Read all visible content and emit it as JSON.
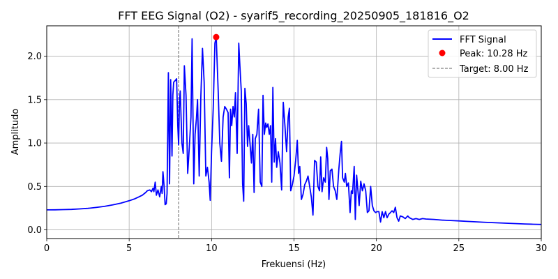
{
  "chart_data": {
    "type": "line",
    "title": "FFT EEG Signal (O2) - syarif5_recording_20250905_181816_O2",
    "xlabel": "Frekuensi (Hz)",
    "ylabel": "Amplitudo",
    "xlim": [
      0,
      30
    ],
    "ylim": [
      -0.1,
      2.35
    ],
    "xticks": [
      0,
      5,
      10,
      15,
      20,
      25,
      30
    ],
    "yticks": [
      0.0,
      0.5,
      1.0,
      1.5,
      2.0
    ],
    "xtick_labels": [
      "0",
      "5",
      "10",
      "15",
      "20",
      "25",
      "30"
    ],
    "ytick_labels": [
      "0.0",
      "0.5",
      "1.0",
      "1.5",
      "2.0"
    ],
    "grid": true,
    "legend_position": "top-right",
    "series": [
      {
        "name": "FFT Signal",
        "color": "#0000ff",
        "points": [
          [
            0,
            0.23
          ],
          [
            0.5,
            0.231
          ],
          [
            1,
            0.233
          ],
          [
            1.5,
            0.236
          ],
          [
            2,
            0.241
          ],
          [
            2.5,
            0.248
          ],
          [
            3,
            0.258
          ],
          [
            3.5,
            0.27
          ],
          [
            4,
            0.287
          ],
          [
            4.5,
            0.308
          ],
          [
            5,
            0.335
          ],
          [
            5.3,
            0.355
          ],
          [
            5.6,
            0.38
          ],
          [
            5.8,
            0.4
          ],
          [
            6.0,
            0.43
          ],
          [
            6.1,
            0.45
          ],
          [
            6.25,
            0.46
          ],
          [
            6.35,
            0.44
          ],
          [
            6.45,
            0.48
          ],
          [
            6.5,
            0.44
          ],
          [
            6.58,
            0.55
          ],
          [
            6.65,
            0.4
          ],
          [
            6.75,
            0.46
          ],
          [
            6.85,
            0.38
          ],
          [
            6.95,
            0.5
          ],
          [
            7.0,
            0.42
          ],
          [
            7.05,
            0.67
          ],
          [
            7.12,
            0.5
          ],
          [
            7.18,
            0.29
          ],
          [
            7.25,
            0.3
          ],
          [
            7.3,
            0.42
          ],
          [
            7.38,
            1.81
          ],
          [
            7.45,
            0.53
          ],
          [
            7.52,
            1.73
          ],
          [
            7.6,
            0.85
          ],
          [
            7.65,
            1.55
          ],
          [
            7.7,
            1.7
          ],
          [
            7.8,
            1.72
          ],
          [
            7.88,
            1.74
          ],
          [
            7.95,
            1.2
          ],
          [
            8.0,
            0.98
          ],
          [
            8.05,
            1.45
          ],
          [
            8.1,
            1.6
          ],
          [
            8.15,
            1.3
          ],
          [
            8.2,
            1.0
          ],
          [
            8.28,
            0.88
          ],
          [
            8.35,
            1.89
          ],
          [
            8.45,
            1.55
          ],
          [
            8.55,
            0.65
          ],
          [
            8.65,
            0.95
          ],
          [
            8.75,
            1.3
          ],
          [
            8.82,
            2.2
          ],
          [
            8.92,
            0.53
          ],
          [
            9.0,
            1.1
          ],
          [
            9.08,
            1.28
          ],
          [
            9.15,
            1.5
          ],
          [
            9.25,
            0.62
          ],
          [
            9.35,
            1.55
          ],
          [
            9.45,
            2.09
          ],
          [
            9.55,
            1.7
          ],
          [
            9.65,
            0.62
          ],
          [
            9.75,
            0.72
          ],
          [
            9.85,
            0.55
          ],
          [
            9.92,
            0.34
          ],
          [
            10.0,
            0.9
          ],
          [
            10.1,
            1.4
          ],
          [
            10.2,
            2.15
          ],
          [
            10.28,
            2.22
          ],
          [
            10.4,
            1.6
          ],
          [
            10.5,
            1.0
          ],
          [
            10.6,
            0.79
          ],
          [
            10.7,
            1.3
          ],
          [
            10.8,
            1.42
          ],
          [
            10.9,
            1.39
          ],
          [
            11.0,
            1.35
          ],
          [
            11.08,
            0.6
          ],
          [
            11.15,
            1.39
          ],
          [
            11.22,
            1.2
          ],
          [
            11.3,
            1.42
          ],
          [
            11.38,
            1.3
          ],
          [
            11.45,
            1.58
          ],
          [
            11.55,
            0.88
          ],
          [
            11.65,
            2.15
          ],
          [
            11.72,
            1.88
          ],
          [
            11.8,
            1.6
          ],
          [
            11.88,
            0.53
          ],
          [
            11.95,
            0.33
          ],
          [
            12.02,
            1.63
          ],
          [
            12.1,
            1.45
          ],
          [
            12.18,
            0.96
          ],
          [
            12.25,
            1.2
          ],
          [
            12.32,
            1.02
          ],
          [
            12.42,
            0.77
          ],
          [
            12.5,
            1.1
          ],
          [
            12.58,
            0.43
          ],
          [
            12.65,
            1.05
          ],
          [
            12.75,
            1.1
          ],
          [
            12.85,
            1.39
          ],
          [
            12.95,
            0.55
          ],
          [
            13.05,
            0.5
          ],
          [
            13.12,
            1.55
          ],
          [
            13.2,
            1.1
          ],
          [
            13.28,
            1.23
          ],
          [
            13.35,
            1.18
          ],
          [
            13.42,
            1.22
          ],
          [
            13.5,
            1.1
          ],
          [
            13.58,
            1.2
          ],
          [
            13.65,
            0.55
          ],
          [
            13.72,
            1.64
          ],
          [
            13.8,
            0.78
          ],
          [
            13.88,
            1.05
          ],
          [
            13.95,
            0.72
          ],
          [
            14.05,
            0.9
          ],
          [
            14.15,
            0.77
          ],
          [
            14.25,
            0.46
          ],
          [
            14.35,
            1.47
          ],
          [
            14.45,
            1.2
          ],
          [
            14.55,
            0.9
          ],
          [
            14.65,
            1.3
          ],
          [
            14.72,
            1.4
          ],
          [
            14.8,
            0.45
          ],
          [
            14.9,
            0.52
          ],
          [
            15.0,
            0.62
          ],
          [
            15.1,
            0.8
          ],
          [
            15.2,
            1.03
          ],
          [
            15.28,
            0.65
          ],
          [
            15.35,
            0.73
          ],
          [
            15.45,
            0.35
          ],
          [
            15.55,
            0.41
          ],
          [
            15.65,
            0.52
          ],
          [
            15.75,
            0.56
          ],
          [
            15.85,
            0.62
          ],
          [
            15.95,
            0.5
          ],
          [
            16.05,
            0.38
          ],
          [
            16.15,
            0.17
          ],
          [
            16.25,
            0.8
          ],
          [
            16.35,
            0.78
          ],
          [
            16.45,
            0.5
          ],
          [
            16.55,
            0.45
          ],
          [
            16.62,
            0.84
          ],
          [
            16.7,
            0.44
          ],
          [
            16.8,
            0.6
          ],
          [
            16.9,
            0.55
          ],
          [
            16.98,
            0.95
          ],
          [
            17.05,
            0.82
          ],
          [
            17.12,
            0.35
          ],
          [
            17.2,
            0.68
          ],
          [
            17.3,
            0.7
          ],
          [
            17.4,
            0.5
          ],
          [
            17.5,
            0.45
          ],
          [
            17.6,
            0.35
          ],
          [
            17.72,
            0.7
          ],
          [
            17.8,
            0.88
          ],
          [
            17.88,
            1.02
          ],
          [
            17.95,
            0.6
          ],
          [
            18.05,
            0.55
          ],
          [
            18.12,
            0.65
          ],
          [
            18.2,
            0.5
          ],
          [
            18.3,
            0.54
          ],
          [
            18.4,
            0.2
          ],
          [
            18.48,
            0.45
          ],
          [
            18.55,
            0.42
          ],
          [
            18.65,
            0.73
          ],
          [
            18.72,
            0.12
          ],
          [
            18.8,
            0.63
          ],
          [
            18.88,
            0.45
          ],
          [
            18.95,
            0.28
          ],
          [
            19.05,
            0.56
          ],
          [
            19.15,
            0.45
          ],
          [
            19.25,
            0.53
          ],
          [
            19.35,
            0.45
          ],
          [
            19.45,
            0.2
          ],
          [
            19.55,
            0.22
          ],
          [
            19.65,
            0.5
          ],
          [
            19.75,
            0.28
          ],
          [
            19.85,
            0.22
          ],
          [
            19.95,
            0.2
          ],
          [
            20.05,
            0.21
          ],
          [
            20.15,
            0.21
          ],
          [
            20.25,
            0.09
          ],
          [
            20.35,
            0.21
          ],
          [
            20.45,
            0.14
          ],
          [
            20.55,
            0.21
          ],
          [
            20.65,
            0.14
          ],
          [
            20.75,
            0.18
          ],
          [
            20.85,
            0.2
          ],
          [
            20.95,
            0.22
          ],
          [
            21.05,
            0.2
          ],
          [
            21.15,
            0.26
          ],
          [
            21.25,
            0.14
          ],
          [
            21.35,
            0.1
          ],
          [
            21.45,
            0.16
          ],
          [
            21.6,
            0.15
          ],
          [
            21.75,
            0.13
          ],
          [
            21.9,
            0.16
          ],
          [
            22.0,
            0.14
          ],
          [
            22.2,
            0.12
          ],
          [
            22.4,
            0.13
          ],
          [
            22.6,
            0.12
          ],
          [
            22.8,
            0.13
          ],
          [
            23.0,
            0.125
          ],
          [
            23.5,
            0.12
          ],
          [
            24.0,
            0.112
          ],
          [
            24.5,
            0.108
          ],
          [
            25.0,
            0.103
          ],
          [
            25.5,
            0.098
          ],
          [
            26.0,
            0.093
          ],
          [
            26.5,
            0.088
          ],
          [
            27.0,
            0.084
          ],
          [
            27.5,
            0.08
          ],
          [
            28.0,
            0.076
          ],
          [
            28.5,
            0.072
          ],
          [
            29.0,
            0.068
          ],
          [
            29.5,
            0.065
          ],
          [
            30,
            0.062
          ]
        ]
      }
    ],
    "peak": {
      "name": "Peak: 10.28 Hz",
      "x": 10.28,
      "y": 2.22,
      "color": "#ff0000"
    },
    "target": {
      "name": "Target: 8.00 Hz",
      "x": 8.0,
      "color": "#808080"
    }
  }
}
